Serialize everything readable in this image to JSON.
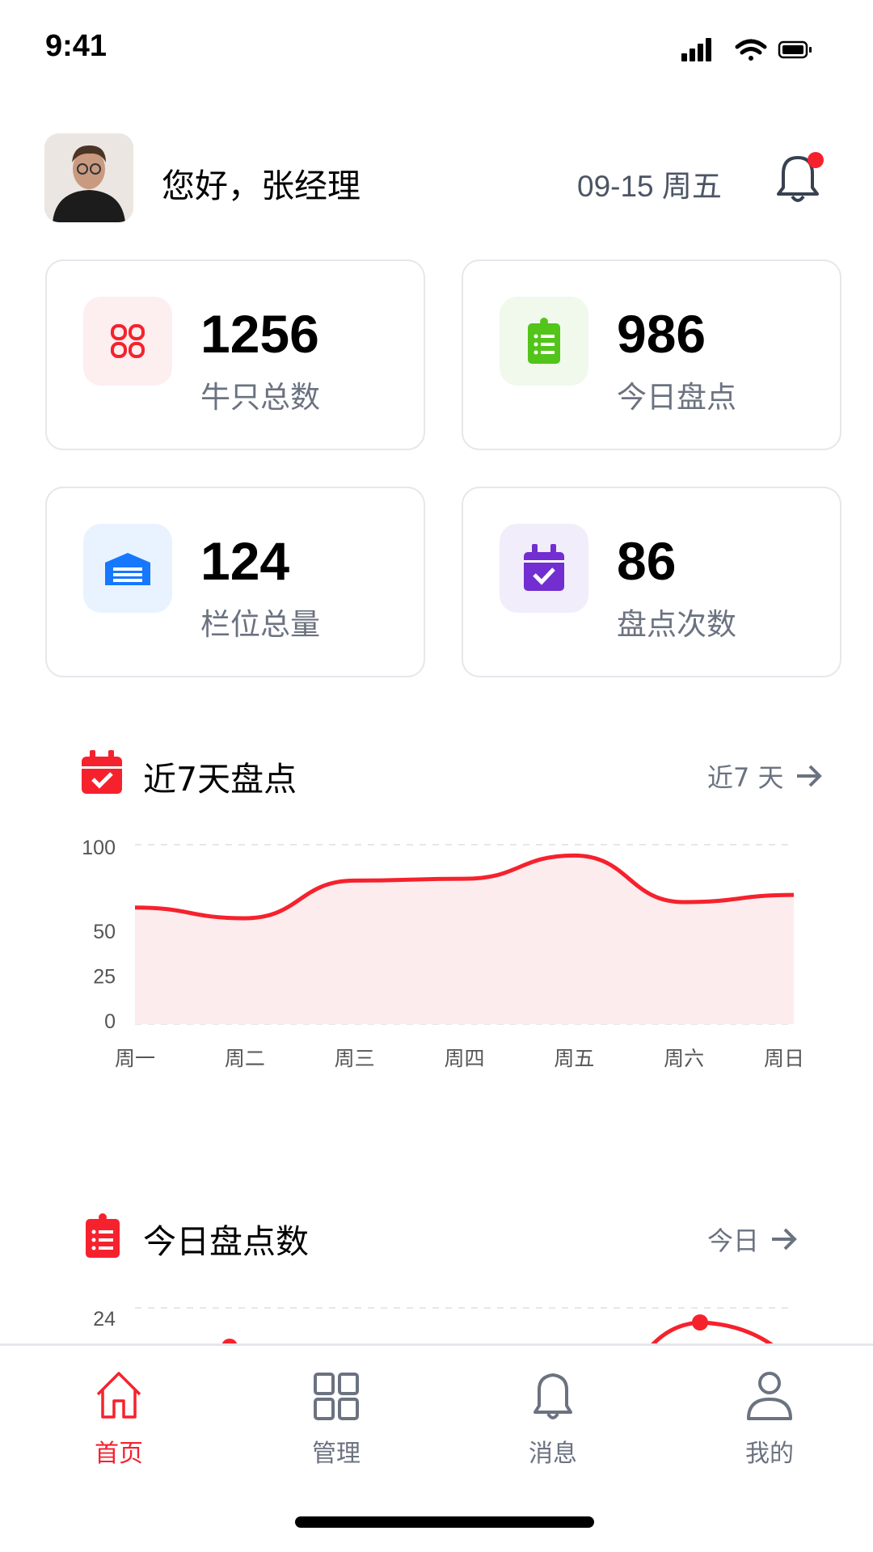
{
  "status_bar": {
    "time": "9:41"
  },
  "header": {
    "greeting": "您好，张经理",
    "date": "09-15 周五",
    "notification_dot": true
  },
  "stats": [
    {
      "value": "1256",
      "label": "牛只总数",
      "icon": "grid-icon",
      "color": "#f5222d",
      "bg": "#fdeeef"
    },
    {
      "value": "986",
      "label": "今日盘点",
      "icon": "clipboard-list-icon",
      "color": "#52c41a",
      "bg": "#f0f9eb"
    },
    {
      "value": "124",
      "label": "栏位总量",
      "icon": "warehouse-icon",
      "color": "#1677ff",
      "bg": "#e8f3ff"
    },
    {
      "value": "86",
      "label": "盘点次数",
      "icon": "calendar-check-icon",
      "color": "#722ed1",
      "bg": "#f1edfb"
    }
  ],
  "section_week": {
    "title": "近7天盘点",
    "link": "近7 天"
  },
  "section_today": {
    "title": "今日盘点数",
    "link": "今日"
  },
  "chart_data": [
    {
      "type": "area",
      "categories": [
        "周一",
        "周二",
        "周三",
        "周四",
        "周五",
        "周六",
        "周日"
      ],
      "values": [
        65,
        59,
        80,
        81,
        94,
        68,
        72
      ],
      "yticks": [
        "0",
        "25",
        "50",
        "100"
      ],
      "ylim": [
        0,
        100
      ],
      "grid": true,
      "color": "#f5222d"
    },
    {
      "type": "line",
      "yticks": [
        "24"
      ],
      "grid": true,
      "color": "#f5222d"
    }
  ],
  "nav": [
    {
      "label": "首页",
      "icon": "home-icon",
      "active": true
    },
    {
      "label": "管理",
      "icon": "grid-icon"
    },
    {
      "label": "消息",
      "icon": "bell-icon"
    },
    {
      "label": "我的",
      "icon": "user-icon"
    }
  ],
  "colors": {
    "accent": "#f5222d",
    "muted": "#6b7280"
  }
}
